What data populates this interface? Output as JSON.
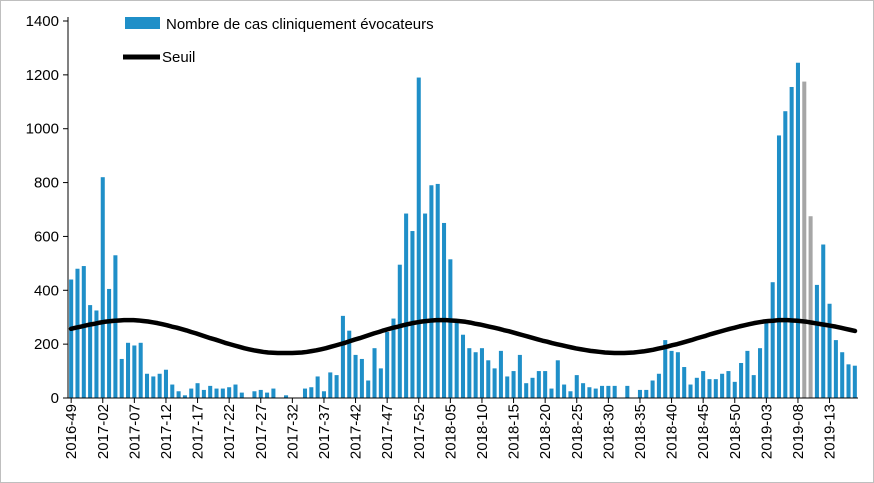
{
  "chart_data": {
    "type": "bar",
    "title": "",
    "xlabel": "",
    "ylabel": "",
    "ylim": [
      0,
      1400
    ],
    "yticks": [
      0,
      200,
      400,
      600,
      800,
      1000,
      1200,
      1400
    ],
    "grid": false,
    "legend": {
      "placement": "top-left",
      "entries": [
        {
          "label": "Nombre de cas cliniquement évocateurs",
          "kind": "bar",
          "color": "#1f8fc8"
        },
        {
          "label": "Seuil",
          "kind": "line",
          "color": "#000000"
        }
      ]
    },
    "colors": {
      "bars": "#1f8fc8",
      "bars_provisional": "#a6a6a6",
      "threshold": "#000000",
      "axis": "#000000"
    },
    "x_tick_labels": [
      "2016-49",
      "2017-02",
      "2017-07",
      "2017-12",
      "2017-17",
      "2017-22",
      "2017-27",
      "2017-32",
      "2017-37",
      "2017-42",
      "2017-47",
      "2017-52",
      "2018-05",
      "2018-10",
      "2018-15",
      "2018-20",
      "2018-25",
      "2018-30",
      "2018-35",
      "2018-40",
      "2018-45",
      "2018-50",
      "2019-03",
      "2019-08",
      "2019-13"
    ],
    "tick_every": 5,
    "series": [
      {
        "name": "Nombre de cas cliniquement évocateurs",
        "kind": "bar",
        "values": [
          440,
          480,
          490,
          345,
          325,
          820,
          405,
          530,
          145,
          205,
          195,
          205,
          90,
          80,
          90,
          105,
          50,
          25,
          10,
          35,
          55,
          30,
          45,
          35,
          35,
          40,
          50,
          20,
          0,
          25,
          30,
          20,
          35,
          0,
          10,
          0,
          0,
          35,
          40,
          80,
          25,
          95,
          85,
          305,
          250,
          160,
          145,
          65,
          185,
          110,
          245,
          295,
          495,
          685,
          620,
          1190,
          685,
          790,
          795,
          650,
          515,
          290,
          235,
          185,
          170,
          185,
          140,
          110,
          175,
          80,
          100,
          160,
          55,
          75,
          100,
          100,
          35,
          140,
          50,
          25,
          85,
          55,
          40,
          35,
          45,
          45,
          45,
          0,
          45,
          0,
          30,
          30,
          65,
          90,
          215,
          175,
          170,
          115,
          50,
          75,
          100,
          70,
          70,
          90,
          100,
          60,
          130,
          175,
          85,
          185,
          280,
          430,
          975,
          1065,
          1155,
          1245,
          1175,
          675,
          420,
          570,
          350,
          215,
          170,
          125,
          120
        ],
        "provisional_indices": [
          116,
          117
        ]
      },
      {
        "name": "Seuil",
        "kind": "line",
        "values": [
          257,
          261,
          265,
          269,
          273,
          276,
          280,
          283,
          285,
          287,
          288,
          289,
          289,
          289,
          288,
          286,
          284,
          281,
          278,
          274,
          270,
          265,
          261,
          256,
          251,
          245,
          240,
          234,
          228,
          222,
          217,
          211,
          205,
          200,
          195,
          190,
          185,
          181,
          177,
          174,
          171,
          169,
          168,
          167,
          167,
          167,
          167,
          168,
          169,
          171,
          174,
          177,
          181,
          185,
          190,
          195,
          200,
          205,
          211,
          217,
          222,
          228,
          234,
          240,
          245,
          251,
          256,
          261,
          265,
          270,
          274,
          278,
          281,
          284,
          286,
          288,
          289,
          289,
          289,
          288,
          287,
          285,
          283,
          280,
          276,
          273,
          269,
          265,
          261,
          257,
          252,
          248,
          243,
          238,
          233,
          228,
          223,
          218,
          213,
          209,
          204,
          200,
          196,
          192,
          188,
          184,
          181,
          178,
          175,
          173,
          171,
          169,
          168,
          167,
          167,
          167,
          168,
          169,
          171,
          173,
          176,
          179,
          183,
          187,
          191,
          196,
          200,
          205,
          210,
          215,
          221,
          226,
          231,
          237,
          242,
          247,
          252,
          257,
          261,
          266,
          270,
          274,
          278,
          281,
          284,
          286,
          287,
          289,
          289,
          289,
          288,
          287,
          285,
          283,
          280,
          277,
          274,
          271,
          268,
          265,
          261,
          257,
          253,
          249
        ]
      }
    ]
  }
}
